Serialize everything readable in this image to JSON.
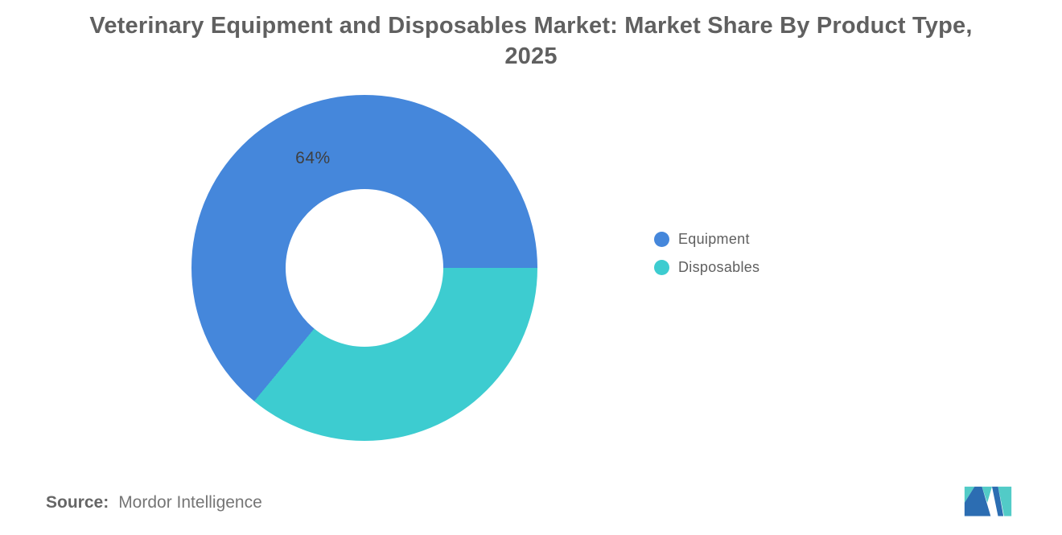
{
  "title": {
    "line1": "Veterinary Equipment and Disposables Market: Market Share By Product Type,",
    "line2": "2025"
  },
  "chart_data": {
    "type": "pie",
    "subtype": "donut",
    "title": "Veterinary Equipment and Disposables Market: Market Share By Product Type, 2025",
    "categories": [
      "Equipment",
      "Disposables"
    ],
    "values": [
      64,
      36
    ],
    "units": "%",
    "slices": [
      {
        "name": "Equipment",
        "value": 64,
        "color": "#4587DB",
        "label": "64%"
      },
      {
        "name": "Disposables",
        "value": 36,
        "color": "#3DCCD0",
        "label": ""
      }
    ],
    "donut_hole_ratio": 0.456,
    "start_bearing_deg": 90,
    "direction": "counterclockwise",
    "legend_position": "right",
    "grid": false
  },
  "source": {
    "label": "Source:",
    "value": "Mordor Intelligence"
  },
  "logo": {
    "name": "mordor-intelligence-logo",
    "navy": "#2C6DB2",
    "teal": "#52CBC7"
  }
}
